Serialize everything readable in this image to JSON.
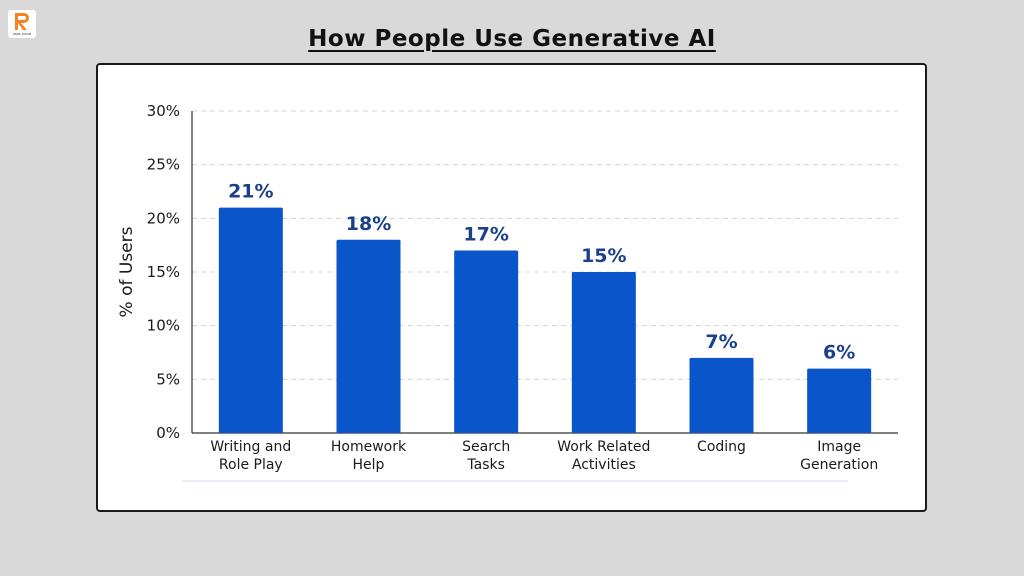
{
  "brand": {
    "logo_text": "raas cloud",
    "accent": "#f5821f"
  },
  "page_title": "How People Use Generative AI",
  "chart_data": {
    "type": "bar",
    "categories": [
      [
        "Writing and",
        "Role Play"
      ],
      [
        "Homework",
        "Help"
      ],
      [
        "Search",
        "Tasks"
      ],
      [
        "Work Related",
        "Activities"
      ],
      [
        "Coding"
      ],
      [
        "Image",
        "Generation"
      ]
    ],
    "values": [
      21,
      18,
      17,
      15,
      7,
      6
    ],
    "value_labels": [
      "21%",
      "18%",
      "17%",
      "15%",
      "7%",
      "6%"
    ],
    "ylabel": "% of Users",
    "ylim": [
      0,
      30
    ],
    "yticks": [
      0,
      5,
      10,
      15,
      20,
      25,
      30
    ],
    "ytick_labels": [
      "0%",
      "5%",
      "10%",
      "15%",
      "20%",
      "25%",
      "30%"
    ],
    "bar_color": "#0a55c9",
    "label_color": "#1a3f8c",
    "grid": true
  }
}
